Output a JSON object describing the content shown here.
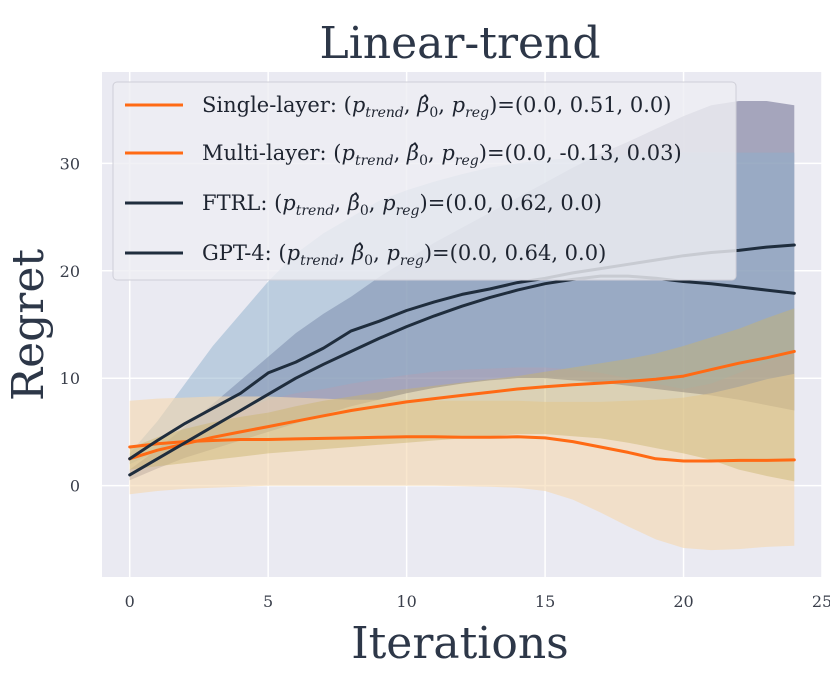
{
  "chart_data": {
    "type": "line",
    "title": "Linear-trend",
    "xlabel": "Iterations",
    "ylabel": "Regret",
    "xlim": [
      -1,
      25
    ],
    "ylim": [
      -8.5,
      38.5
    ],
    "xticks": [
      0,
      5,
      10,
      15,
      20,
      25
    ],
    "yticks": [
      0,
      10,
      20,
      30
    ],
    "grid": true,
    "legend_position": "top-left",
    "series": [
      {
        "name": "Single-layer",
        "legend_params": "=(0.0, 0.51, 0.0)",
        "color": "#ff6a14",
        "band_color": "#f5d8b0",
        "x": [
          0,
          1,
          2,
          3,
          4,
          5,
          6,
          7,
          8,
          9,
          10,
          11,
          12,
          13,
          14,
          15,
          16,
          17,
          18,
          19,
          20,
          21,
          22,
          23,
          24
        ],
        "mean": [
          3.6,
          3.9,
          4.1,
          4.2,
          4.3,
          4.3,
          4.35,
          4.4,
          4.45,
          4.5,
          4.55,
          4.55,
          4.5,
          4.5,
          4.55,
          4.45,
          4.1,
          3.6,
          3.1,
          2.5,
          2.3,
          2.3,
          2.35,
          2.35,
          2.4
        ],
        "lower": [
          -0.8,
          -0.5,
          -0.3,
          -0.2,
          -0.1,
          0.0,
          0.0,
          0.0,
          0.0,
          0.0,
          0.0,
          0.0,
          -0.05,
          -0.1,
          -0.2,
          -0.5,
          -1.3,
          -2.5,
          -3.8,
          -5.0,
          -5.8,
          -6.0,
          -5.9,
          -5.7,
          -5.6
        ],
        "upper": [
          7.9,
          8.1,
          8.2,
          8.3,
          8.3,
          8.3,
          8.2,
          8.1,
          8.0,
          8.0,
          8.0,
          7.9,
          7.9,
          7.9,
          7.9,
          7.8,
          7.8,
          7.8,
          7.9,
          8.0,
          8.2,
          8.6,
          9.2,
          9.9,
          10.4
        ]
      },
      {
        "name": "Multi-layer",
        "legend_params": "=(0.0, -0.13, 0.03)",
        "color": "#ff6a14",
        "band_color": "#c9b36a",
        "x": [
          0,
          1,
          2,
          3,
          4,
          5,
          6,
          7,
          8,
          9,
          10,
          11,
          12,
          13,
          14,
          15,
          16,
          17,
          18,
          19,
          20,
          21,
          22,
          23,
          24
        ],
        "mean": [
          2.5,
          3.3,
          3.9,
          4.5,
          5.0,
          5.5,
          6.0,
          6.5,
          7.0,
          7.4,
          7.8,
          8.1,
          8.4,
          8.7,
          9.0,
          9.2,
          9.4,
          9.55,
          9.7,
          9.9,
          10.2,
          10.8,
          11.4,
          11.9,
          12.5
        ],
        "lower": [
          1.5,
          1.8,
          2.1,
          2.4,
          2.7,
          3.0,
          3.2,
          3.4,
          3.6,
          3.8,
          4.0,
          4.2,
          4.4,
          4.6,
          4.8,
          4.8,
          4.6,
          4.4,
          4.0,
          3.5,
          3.0,
          2.4,
          1.5,
          0.9,
          0.4
        ],
        "upper": [
          3.5,
          4.5,
          5.3,
          5.9,
          6.4,
          6.8,
          7.4,
          7.9,
          8.3,
          8.7,
          9.0,
          9.3,
          9.6,
          9.9,
          10.2,
          10.6,
          11.0,
          11.4,
          11.8,
          12.3,
          13.0,
          13.8,
          14.6,
          15.6,
          16.5
        ]
      },
      {
        "name": "FTRL",
        "legend_params": "=(0.0, 0.62, 0.0)",
        "color": "#1f2d3d",
        "band_color": "#8a8aa6",
        "x": [
          0,
          1,
          2,
          3,
          4,
          5,
          6,
          7,
          8,
          9,
          10,
          11,
          12,
          13,
          14,
          15,
          16,
          17,
          18,
          19,
          20,
          21,
          22,
          23,
          24
        ],
        "mean": [
          1.0,
          2.5,
          4.0,
          5.5,
          7.0,
          8.5,
          10.0,
          11.3,
          12.5,
          13.7,
          14.8,
          15.8,
          16.7,
          17.5,
          18.2,
          18.8,
          19.2,
          19.5,
          19.5,
          19.3,
          19.0,
          18.8,
          18.5,
          18.2,
          17.9
        ],
        "lower": [
          0.5,
          1.6,
          2.6,
          3.4,
          4.2,
          5.0,
          5.8,
          6.6,
          7.4,
          8.0,
          8.6,
          9.1,
          9.5,
          9.8,
          10.0,
          10.0,
          9.8,
          9.6,
          9.3,
          9.0,
          8.7,
          8.4,
          8.0,
          7.5,
          7.0
        ],
        "upper": [
          1.5,
          3.4,
          5.5,
          7.6,
          9.8,
          12.0,
          14.2,
          16.0,
          17.6,
          19.4,
          21.0,
          22.6,
          24.0,
          25.4,
          26.8,
          28.2,
          29.6,
          30.9,
          32.0,
          33.2,
          34.4,
          35.4,
          35.8,
          35.8,
          35.4
        ]
      },
      {
        "name": "GPT-4",
        "legend_params": "=(0.0, 0.64, 0.0)",
        "color": "#1f2d3d",
        "band_color": "#8eb0cc",
        "x": [
          0,
          1,
          2,
          3,
          4,
          5,
          6,
          7,
          8,
          9,
          10,
          11,
          12,
          13,
          14,
          15,
          16,
          17,
          18,
          19,
          20,
          21,
          22,
          23,
          24
        ],
        "mean": [
          2.5,
          4.2,
          5.8,
          7.2,
          8.6,
          10.5,
          11.5,
          12.8,
          14.4,
          15.3,
          16.3,
          17.1,
          17.8,
          18.3,
          18.9,
          19.3,
          19.8,
          20.2,
          20.6,
          21.0,
          21.4,
          21.7,
          21.9,
          22.2,
          22.4
        ],
        "lower": [
          2.0,
          3.2,
          4.5,
          5.8,
          7.0,
          8.0,
          8.6,
          9.0,
          9.5,
          9.9,
          10.3,
          10.6,
          10.8,
          10.9,
          11.0,
          11.0,
          10.8,
          10.5,
          10.0,
          9.5,
          9.0,
          9.5,
          10.5,
          11.5,
          12.5
        ],
        "upper": [
          3.0,
          6.0,
          9.5,
          13.0,
          16.0,
          19.0,
          21.6,
          23.5,
          25.0,
          26.5,
          27.5,
          28.3,
          29.0,
          29.6,
          30.0,
          30.3,
          30.5,
          30.6,
          30.8,
          30.9,
          31.0,
          31.0,
          31.0,
          31.0,
          31.0
        ]
      }
    ]
  }
}
